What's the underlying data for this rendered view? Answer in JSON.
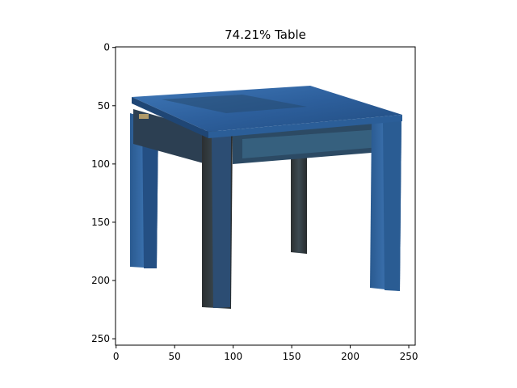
{
  "figure": {
    "title": "74.21% Table",
    "prediction": {
      "confidence_percent": 74.21,
      "label": "Table"
    }
  },
  "image_axes": {
    "x_ticks": [
      "0",
      "50",
      "100",
      "150",
      "200",
      "250"
    ],
    "y_ticks": [
      "0",
      "50",
      "100",
      "150",
      "200",
      "250"
    ],
    "x_range": [
      -0.5,
      255.5
    ],
    "y_range": [
      255.5,
      -0.5
    ]
  },
  "image": {
    "subject": "blue-washed wooden square side table on white background",
    "colors": {
      "blue": "#2f62a0",
      "blue_light": "#4c86c2",
      "blue_dark": "#1f3f6b",
      "wood_dark": "#2c2e2c",
      "wood_mid": "#3d4a52",
      "background": "#ffffff"
    }
  }
}
